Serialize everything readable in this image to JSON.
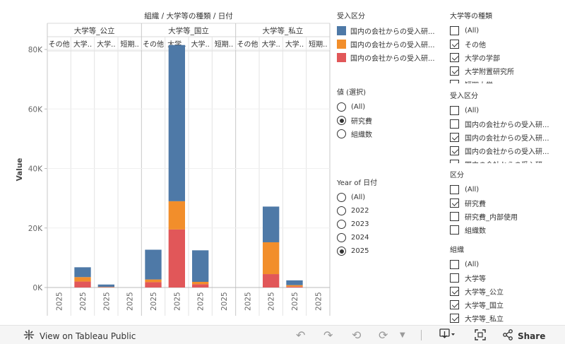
{
  "chart": {
    "title": "組織 / 大学等の種類 / 日付",
    "y_axis_label": "Value",
    "y_ticks": [
      "0K",
      "20K",
      "40K",
      "60K",
      "80K"
    ],
    "x_tick_label": "2025"
  },
  "chart_data": {
    "type": "bar",
    "stacked": true,
    "title": "組織 / 大学等の種類 / 日付",
    "ylabel": "Value",
    "ylim": [
      0,
      85000
    ],
    "groups": [
      {
        "name": "大学等_公立",
        "subcategories": [
          "その他",
          "大学..",
          "大学..",
          "短期.."
        ]
      },
      {
        "name": "大学等_国立",
        "subcategories": [
          "その他",
          "大学..",
          "大学..",
          "短期.."
        ]
      },
      {
        "name": "大学等_私立",
        "subcategories": [
          "その他",
          "大学..",
          "大学..",
          "短期.."
        ]
      }
    ],
    "columns": [
      {
        "group": "大学等_公立",
        "subcategory": "その他",
        "date": "2025",
        "stack": [
          0,
          0,
          0
        ]
      },
      {
        "group": "大学等_公立",
        "subcategory": "大学..",
        "date": "2025",
        "stack": [
          2000,
          1500,
          3300
        ]
      },
      {
        "group": "大学等_公立",
        "subcategory": "大学..",
        "date": "2025",
        "stack": [
          100,
          100,
          800
        ]
      },
      {
        "group": "大学等_公立",
        "subcategory": "短期..",
        "date": "2025",
        "stack": [
          0,
          0,
          0
        ]
      },
      {
        "group": "大学等_国立",
        "subcategory": "その他",
        "date": "2025",
        "stack": [
          1800,
          900,
          10000
        ]
      },
      {
        "group": "大学等_国立",
        "subcategory": "大学..",
        "date": "2025",
        "stack": [
          19500,
          9500,
          52500
        ]
      },
      {
        "group": "大学等_国立",
        "subcategory": "大学..",
        "date": "2025",
        "stack": [
          1100,
          800,
          10600
        ]
      },
      {
        "group": "大学等_国立",
        "subcategory": "短期..",
        "date": "2025",
        "stack": [
          0,
          0,
          0
        ]
      },
      {
        "group": "大学等_私立",
        "subcategory": "その他",
        "date": "2025",
        "stack": [
          0,
          0,
          0
        ]
      },
      {
        "group": "大学等_私立",
        "subcategory": "大学..",
        "date": "2025",
        "stack": [
          4500,
          10700,
          12000
        ]
      },
      {
        "group": "大学等_私立",
        "subcategory": "大学..",
        "date": "2025",
        "stack": [
          300,
          500,
          1600
        ]
      },
      {
        "group": "大学等_私立",
        "subcategory": "短期..",
        "date": "2025",
        "stack": [
          0,
          0,
          0
        ]
      }
    ],
    "series": [
      {
        "name": "国内の会社からの受入研...",
        "color": "#e15759"
      },
      {
        "name": "国内の会社からの受入研...",
        "color": "#f28e2b"
      },
      {
        "name": "国内の会社からの受入研...",
        "color": "#4e79a7"
      }
    ]
  },
  "legend": {
    "title": "受入区分",
    "items": [
      {
        "label": "国内の会社からの受入研...",
        "color": "#4e79a7"
      },
      {
        "label": "国内の会社からの受入研...",
        "color": "#f28e2b"
      },
      {
        "label": "国内の会社からの受入研...",
        "color": "#e15759"
      }
    ]
  },
  "value_param": {
    "title": "値 (選択)",
    "options": [
      {
        "label": "(All)",
        "selected": false
      },
      {
        "label": "研究費",
        "selected": true
      },
      {
        "label": "組織数",
        "selected": false
      }
    ]
  },
  "year_param": {
    "title": "Year of 日付",
    "options": [
      {
        "label": "(All)",
        "selected": false
      },
      {
        "label": "2022",
        "selected": false
      },
      {
        "label": "2023",
        "selected": false
      },
      {
        "label": "2024",
        "selected": false
      },
      {
        "label": "2025",
        "selected": true
      }
    ]
  },
  "filter_type": {
    "title": "大学等の種類",
    "items": [
      {
        "label": "(All)",
        "checked": false
      },
      {
        "label": "その他",
        "checked": true
      },
      {
        "label": "大学の学部",
        "checked": true
      },
      {
        "label": "大学附置研究所",
        "checked": true
      },
      {
        "label": "短期大学",
        "checked": true
      }
    ]
  },
  "filter_category": {
    "title": "受入区分",
    "items": [
      {
        "label": "(All)",
        "checked": false
      },
      {
        "label": "国内の会社からの受入研...",
        "checked": false
      },
      {
        "label": "国内の会社からの受入研...",
        "checked": true
      },
      {
        "label": "国内の会社からの受入研...",
        "checked": true
      },
      {
        "label": "国内の会社からの受入研",
        "checked": true
      }
    ]
  },
  "filter_kubun": {
    "title": "区分",
    "items": [
      {
        "label": "(All)",
        "checked": false
      },
      {
        "label": "研究費",
        "checked": true
      },
      {
        "label": "研究費_内部使用",
        "checked": false
      },
      {
        "label": "組織数",
        "checked": false
      }
    ]
  },
  "filter_org": {
    "title": "組織",
    "items": [
      {
        "label": "(All)",
        "checked": false
      },
      {
        "label": "大学等",
        "checked": false
      },
      {
        "label": "大学等_公立",
        "checked": true
      },
      {
        "label": "大学等_国立",
        "checked": true
      },
      {
        "label": "大学等_私立",
        "checked": true
      }
    ]
  },
  "toolbar": {
    "view_label": "View on Tableau Public",
    "share_label": "Share"
  }
}
